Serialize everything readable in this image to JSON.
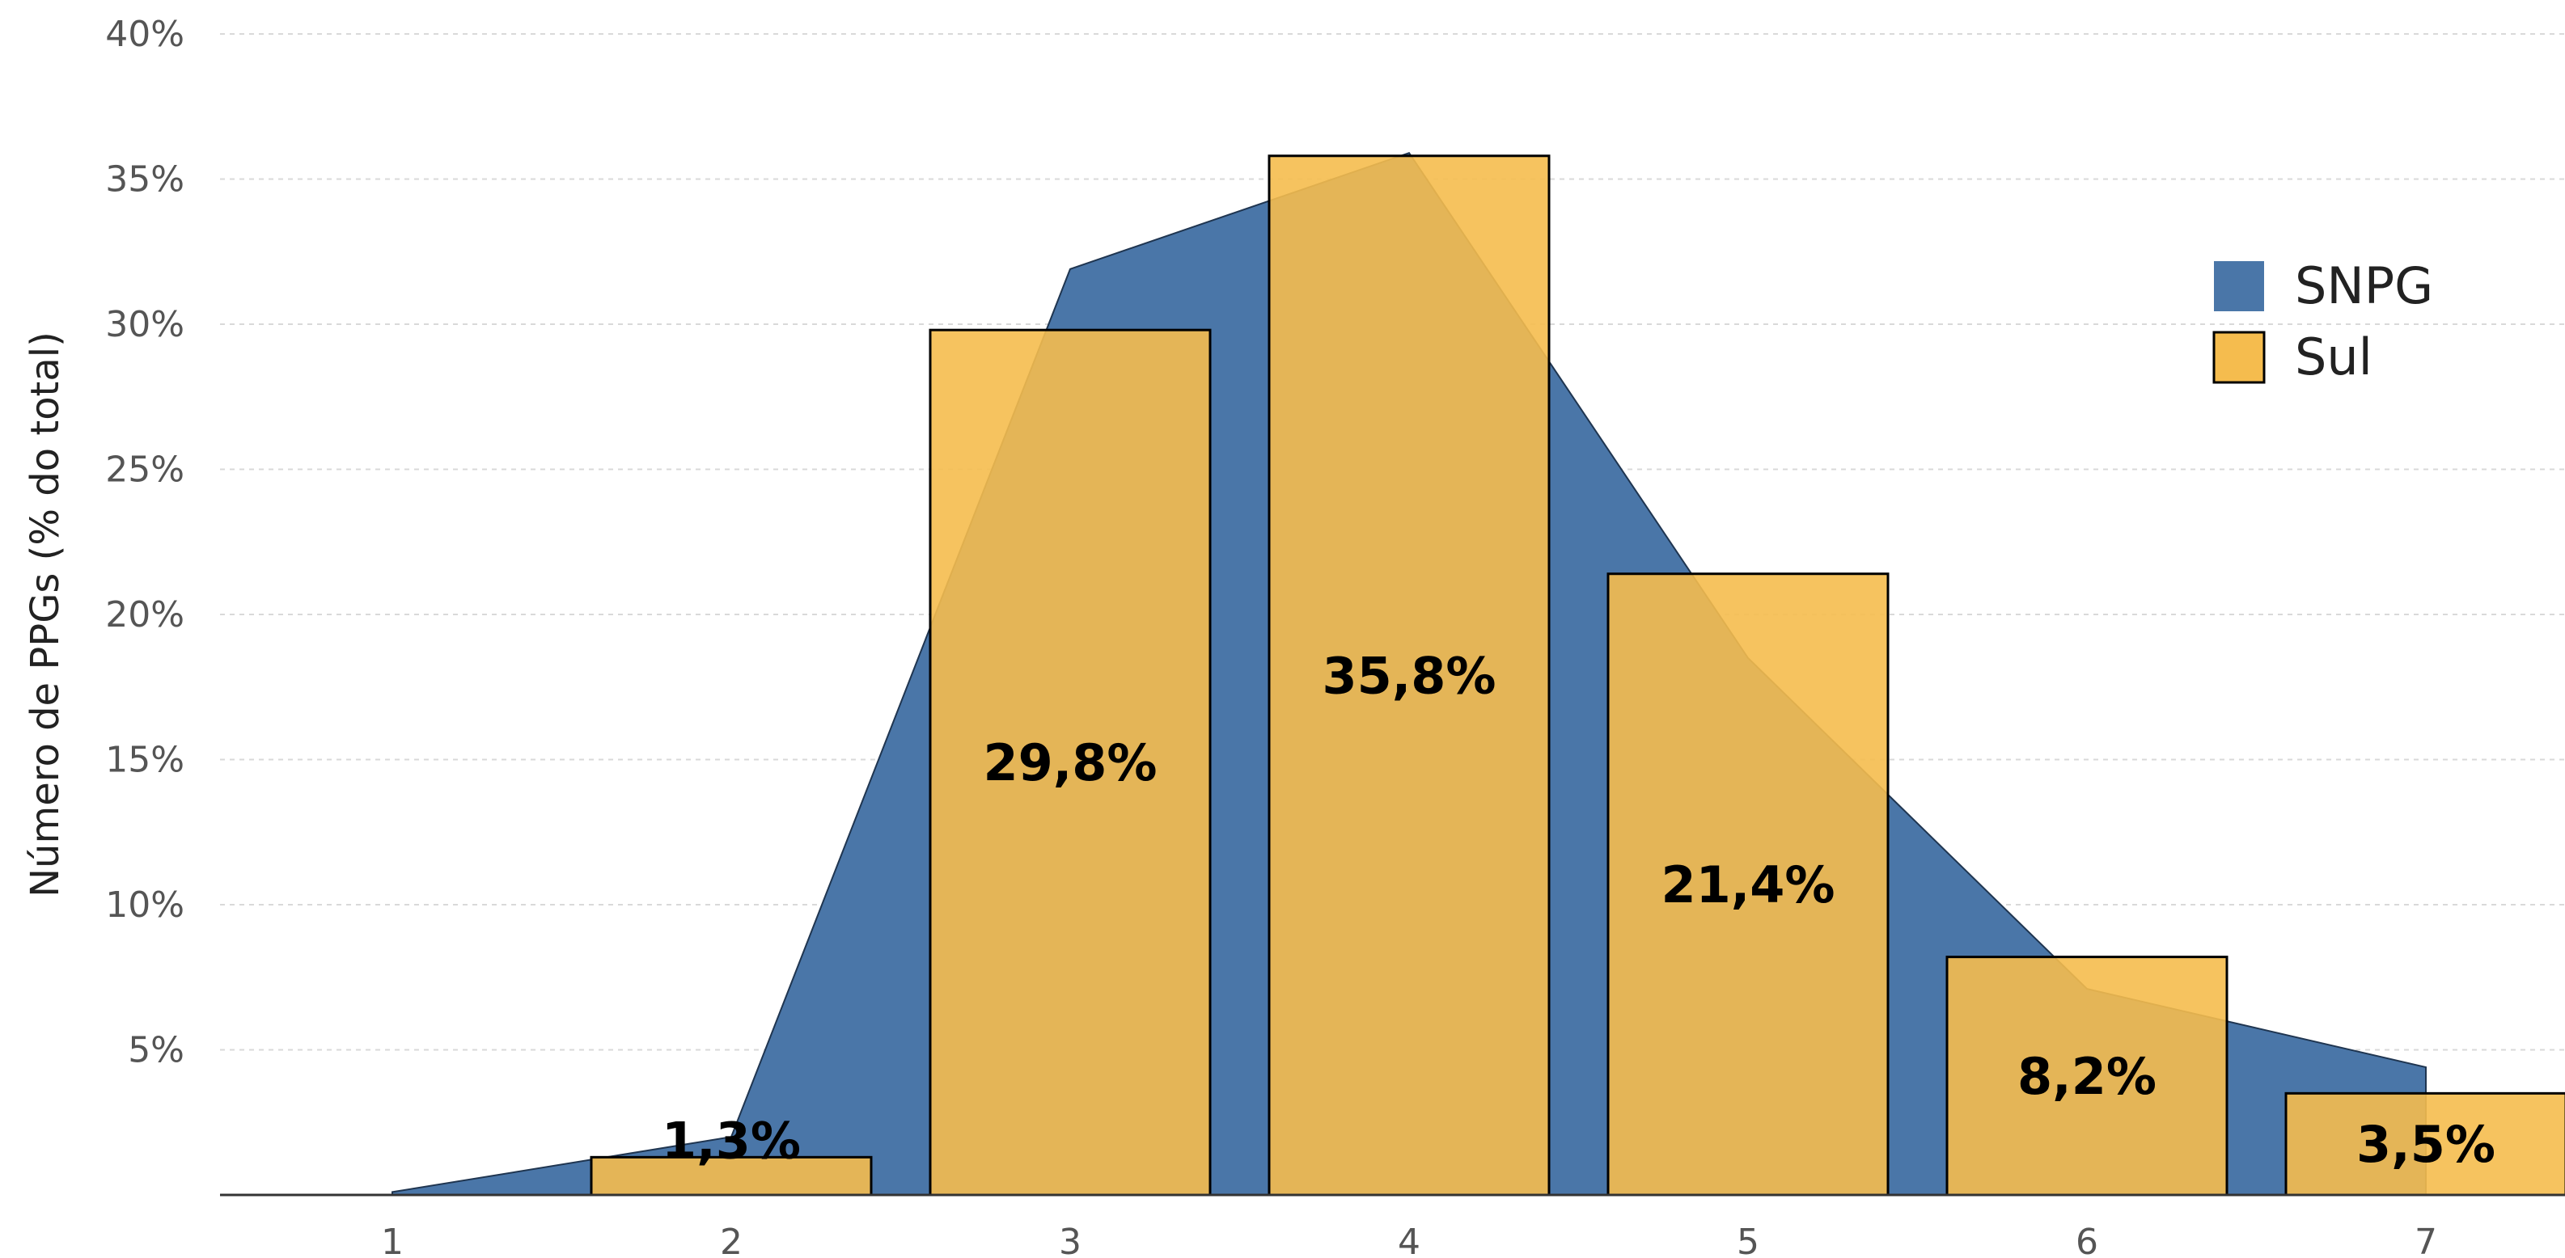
{
  "chart_data": {
    "type": "bar",
    "categories": [
      "1",
      "2",
      "3",
      "4",
      "5",
      "6",
      "7"
    ],
    "ylabel": "Número de PPGs (% do total)",
    "xlabel": "",
    "title": "",
    "ylim": [
      0,
      40
    ],
    "yticks": [
      5,
      10,
      15,
      20,
      25,
      30,
      35,
      40
    ],
    "ytick_labels": [
      "5%",
      "10%",
      "15%",
      "20%",
      "25%",
      "30%",
      "35%",
      "40%"
    ],
    "grid": "horizontal dashed",
    "legend_position": "top-right",
    "series": [
      {
        "name": "SNPG",
        "kind": "area",
        "color": "#4a76a8",
        "values": [
          0.1,
          2.0,
          31.9,
          35.9,
          18.5,
          7.1,
          4.4
        ]
      },
      {
        "name": "Sul",
        "kind": "bar",
        "color": "#f5bc4e",
        "values": [
          0,
          1.3,
          29.8,
          35.8,
          21.4,
          8.2,
          3.5
        ],
        "data_labels": [
          "",
          "1,3%",
          "29,8%",
          "35,8%",
          "21,4%",
          "8,2%",
          "3,5%"
        ]
      }
    ]
  }
}
